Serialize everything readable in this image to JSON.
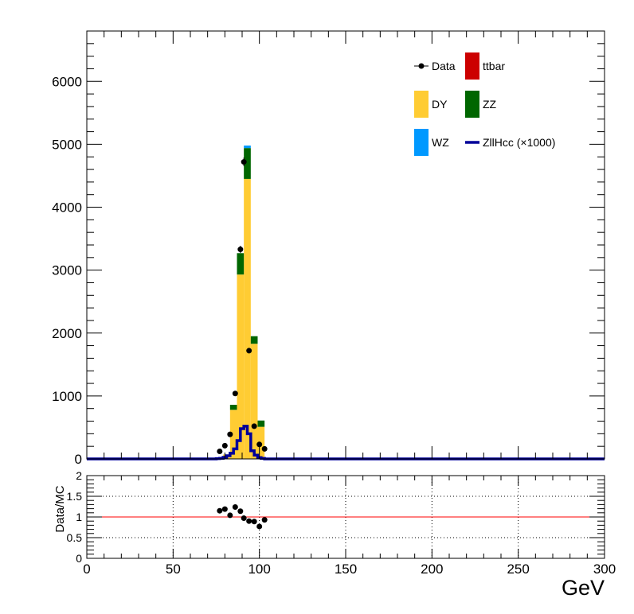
{
  "chart_data": [
    {
      "type": "bar",
      "stacked": true,
      "title": "",
      "xlabel": "",
      "ylabel": "",
      "xlim": [
        0,
        300
      ],
      "ylim": [
        0,
        6800
      ],
      "yticks": [
        "0",
        "1000",
        "2000",
        "3000",
        "4000",
        "5000",
        "6000"
      ],
      "grid": false,
      "legend_position": "top-right",
      "legend": [
        {
          "label": "Data",
          "kind": "marker",
          "color": "#000000"
        },
        {
          "label": "ttbar",
          "kind": "box",
          "color": "#cc0000"
        },
        {
          "label": "DY",
          "kind": "box",
          "color": "#ffcc33"
        },
        {
          "label": "ZZ",
          "kind": "box",
          "color": "#006600"
        },
        {
          "label": "WZ",
          "kind": "box",
          "color": "#0099ff"
        },
        {
          "label": "ZllHcc (×1000)",
          "kind": "line",
          "color": "#000099"
        }
      ],
      "bin_edges": [
        75,
        79,
        83,
        87,
        91,
        95,
        99,
        103
      ],
      "stack": [
        {
          "name": "DY",
          "color": "#ffcc33",
          "values": [
            20,
            70,
            780,
            2930,
            4450,
            1830,
            510
          ]
        },
        {
          "name": "ZZ",
          "color": "#006600",
          "values": [
            0,
            0,
            80,
            340,
            490,
            120,
            100
          ]
        },
        {
          "name": "WZ",
          "color": "#0099ff",
          "values": [
            0,
            0,
            0,
            0,
            40,
            0,
            0
          ]
        },
        {
          "name": "ttbar",
          "color": "#cc0000",
          "values": [
            0,
            0,
            0,
            0,
            0,
            0,
            0
          ]
        }
      ],
      "signal": {
        "name": "ZllHcc (×1000)",
        "color": "#000099",
        "bin_edges": [
          75,
          77,
          79,
          81,
          83,
          85,
          87,
          89,
          91,
          93,
          95,
          97,
          99,
          101,
          103
        ],
        "values": [
          5,
          10,
          25,
          50,
          90,
          160,
          290,
          480,
          520,
          400,
          130,
          60,
          20,
          8
        ]
      },
      "data_points": {
        "name": "Data",
        "x": [
          77,
          80,
          83,
          86,
          89,
          91,
          94,
          97,
          100,
          103
        ],
        "y": [
          120,
          210,
          390,
          1040,
          3330,
          4720,
          1720,
          520,
          230,
          160
        ]
      },
      "xticks_hidden": true
    },
    {
      "type": "scatter",
      "title": "",
      "xlabel": "GeV",
      "ylabel": "Data/MC",
      "xlim": [
        0,
        300
      ],
      "ylim": [
        0,
        2
      ],
      "xticks": [
        "0",
        "50",
        "100",
        "150",
        "200",
        "250",
        "300"
      ],
      "yticks": [
        "0",
        "0.5",
        "1",
        "1.5",
        "2"
      ],
      "grid": true,
      "reference_line": {
        "y": 1,
        "color": "#ff0000"
      },
      "x": [
        77,
        80,
        83,
        86,
        89,
        91,
        94,
        97,
        100,
        103
      ],
      "y": [
        1.15,
        1.19,
        1.04,
        1.24,
        1.14,
        0.97,
        0.9,
        0.89,
        0.77,
        0.93
      ]
    }
  ]
}
